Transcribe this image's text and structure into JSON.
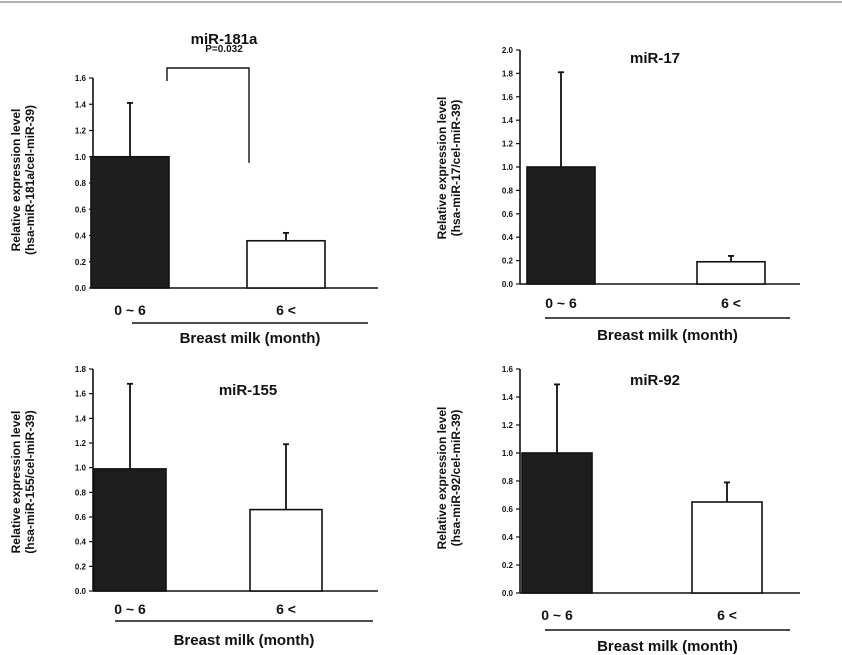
{
  "figure": {
    "charts": [
      {
        "type": "bar",
        "title": "miR-181a",
        "ylabel_line1": "Relative expression level",
        "ylabel_line2": "(hsa-miR-181a/cel-miR-39)",
        "xlabel": "Breast milk (month)",
        "categories": [
          "0 ~ 6",
          "6 <"
        ],
        "values": [
          1.0,
          0.36
        ],
        "errors": [
          0.41,
          0.06
        ],
        "bar_colors": [
          "#1e1e1e",
          "#ffffff"
        ],
        "ylim": [
          0,
          1.6
        ],
        "yticks": [
          "0.0",
          "0.2",
          "0.4",
          "0.6",
          "0.8",
          "1.0",
          "1.2",
          "1.4",
          "1.6"
        ],
        "annotation": "P=0.032"
      },
      {
        "type": "bar",
        "title": "miR-17",
        "ylabel_line1": "Relative expression level",
        "ylabel_line2": "(hsa-miR-17/cel-miR-39)",
        "xlabel": "Breast milk (month)",
        "categories": [
          "0 ~ 6",
          "6 <"
        ],
        "values": [
          1.0,
          0.19
        ],
        "errors": [
          0.81,
          0.05
        ],
        "bar_colors": [
          "#1e1e1e",
          "#ffffff"
        ],
        "ylim": [
          0,
          2.0
        ],
        "yticks": [
          "0.0",
          "0.2",
          "0.4",
          "0.6",
          "0.8",
          "1.0",
          "1.2",
          "1.4",
          "1.6",
          "1.8",
          "2.0"
        ],
        "annotation": ""
      },
      {
        "type": "bar",
        "title": "miR-155",
        "ylabel_line1": "Relative expression level",
        "ylabel_line2": "(hsa-miR-155/cel-miR-39)",
        "xlabel": "Breast milk (month)",
        "categories": [
          "0 ~ 6",
          "6 <"
        ],
        "values": [
          0.99,
          0.66
        ],
        "errors": [
          0.69,
          0.53
        ],
        "bar_colors": [
          "#1e1e1e",
          "#ffffff"
        ],
        "ylim": [
          0,
          1.8
        ],
        "yticks": [
          "0.0",
          "0.2",
          "0.4",
          "0.6",
          "0.8",
          "1.0",
          "1.2",
          "1.4",
          "1.6",
          "1.8"
        ],
        "annotation": ""
      },
      {
        "type": "bar",
        "title": "miR-92",
        "ylabel_line1": "Relative expression level",
        "ylabel_line2": "(hsa-miR-92/cel-miR-39)",
        "xlabel": "Breast milk (month)",
        "categories": [
          "0 ~ 6",
          "6 <"
        ],
        "values": [
          1.0,
          0.65
        ],
        "errors": [
          0.49,
          0.14
        ],
        "bar_colors": [
          "#1e1e1e",
          "#ffffff"
        ],
        "ylim": [
          0,
          1.6
        ],
        "yticks": [
          "0.0",
          "0.2",
          "0.4",
          "0.6",
          "0.8",
          "1.0",
          "1.2",
          "1.4",
          "1.6"
        ],
        "annotation": ""
      }
    ]
  },
  "chart_data": [
    {
      "type": "bar",
      "title": "miR-181a",
      "categories": [
        "0 ~ 6",
        "6 <"
      ],
      "values": [
        1.0,
        0.36
      ],
      "errors": [
        0.41,
        0.06
      ],
      "xlabel": "Breast milk (month)",
      "ylabel": "Relative expression level (hsa-miR-181a/cel-miR-39)",
      "ylim": [
        0,
        1.6
      ],
      "annotations": [
        "P=0.032"
      ],
      "grid": false
    },
    {
      "type": "bar",
      "title": "miR-17",
      "categories": [
        "0 ~ 6",
        "6 <"
      ],
      "values": [
        1.0,
        0.19
      ],
      "errors": [
        0.81,
        0.05
      ],
      "xlabel": "Breast milk (month)",
      "ylabel": "Relative expression level (hsa-miR-17/cel-miR-39)",
      "ylim": [
        0,
        2.0
      ],
      "grid": false
    },
    {
      "type": "bar",
      "title": "miR-155",
      "categories": [
        "0 ~ 6",
        "6 <"
      ],
      "values": [
        0.99,
        0.66
      ],
      "errors": [
        0.69,
        0.53
      ],
      "xlabel": "Breast milk (month)",
      "ylabel": "Relative expression level (hsa-miR-155/cel-miR-39)",
      "ylim": [
        0,
        1.8
      ],
      "grid": false
    },
    {
      "type": "bar",
      "title": "miR-92",
      "categories": [
        "0 ~ 6",
        "6 <"
      ],
      "values": [
        1.0,
        0.65
      ],
      "errors": [
        0.49,
        0.14
      ],
      "xlabel": "Breast milk (month)",
      "ylabel": "Relative expression level (hsa-miR-92/cel-miR-39)",
      "ylim": [
        0,
        1.6
      ],
      "grid": false
    }
  ]
}
